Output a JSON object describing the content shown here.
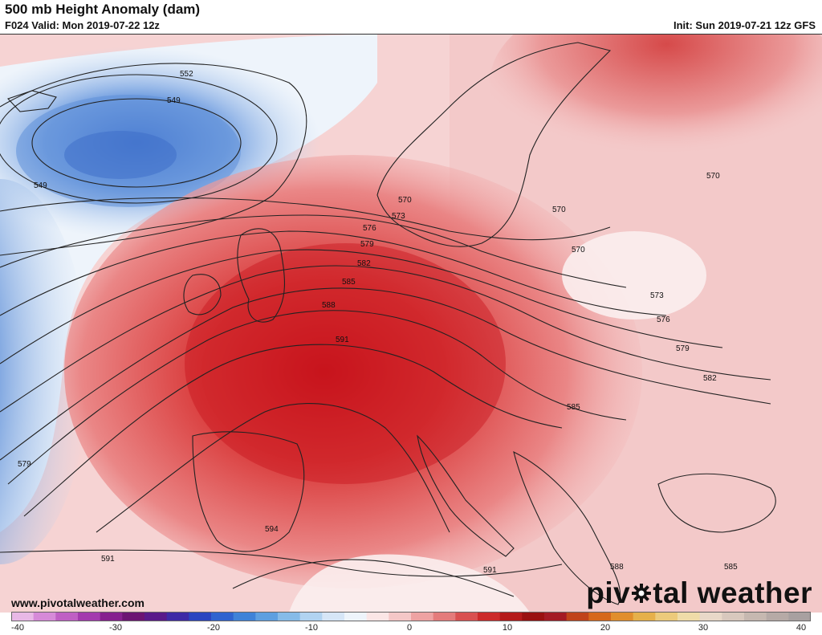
{
  "header": {
    "title": "500 mb Height Anomaly (dam)",
    "subtitle": "F024 Valid: Mon 2019-07-22 12z",
    "init": "Init: Sun 2019-07-21 12z GFS"
  },
  "footer": {
    "website": "www.pivotalweather.com",
    "logo_part1": "piv",
    "logo_part2": "tal weather"
  },
  "map": {
    "region": "Europe and North Atlantic",
    "colors": {
      "deep_negative": "#2b5cc4",
      "negative": "#6f9be0",
      "light_negative": "#bcd4f0",
      "neutral": "#ffffff",
      "light_positive": "#f4c6c6",
      "positive": "#e06262",
      "strong_positive": "#c8141c"
    },
    "contour_labels": [
      {
        "id": "c552",
        "text": "552"
      },
      {
        "id": "c549a",
        "text": "549"
      },
      {
        "id": "c549b",
        "text": "549"
      },
      {
        "id": "c570a",
        "text": "570"
      },
      {
        "id": "c573a",
        "text": "573"
      },
      {
        "id": "c576a",
        "text": "576"
      },
      {
        "id": "c579a",
        "text": "579"
      },
      {
        "id": "c582a",
        "text": "582"
      },
      {
        "id": "c585a",
        "text": "585"
      },
      {
        "id": "c588a",
        "text": "588"
      },
      {
        "id": "c591a",
        "text": "591"
      },
      {
        "id": "c570b",
        "text": "570"
      },
      {
        "id": "c570c",
        "text": "570"
      },
      {
        "id": "c570d",
        "text": "570"
      },
      {
        "id": "c573b",
        "text": "573"
      },
      {
        "id": "c576b",
        "text": "576"
      },
      {
        "id": "c579b",
        "text": "579"
      },
      {
        "id": "c582b",
        "text": "582"
      },
      {
        "id": "c585b",
        "text": "585"
      },
      {
        "id": "c579c",
        "text": "579"
      },
      {
        "id": "c594",
        "text": "594"
      },
      {
        "id": "c591b",
        "text": "591"
      },
      {
        "id": "c591c",
        "text": "591"
      },
      {
        "id": "c588b",
        "text": "588"
      },
      {
        "id": "c585c",
        "text": "585"
      }
    ]
  },
  "colorbar": {
    "min": -40,
    "max": 40,
    "ticks": [
      "-40",
      "-30",
      "-20",
      "-10",
      "0",
      "10",
      "20",
      "30",
      "40"
    ],
    "colors": [
      "#e8b8e6",
      "#d68ad8",
      "#bf5fc4",
      "#a33aae",
      "#86208f",
      "#6c1473",
      "#5a1a8a",
      "#3f2aa6",
      "#2b45c0",
      "#2f63cf",
      "#3f82d8",
      "#5e9fe0",
      "#86bbe8",
      "#b1d3f1",
      "#d6e6f7",
      "#eef4fb",
      "#fbe6e6",
      "#f5c7c7",
      "#eea2a2",
      "#e47b7b",
      "#d95050",
      "#cc2a2a",
      "#b51a1a",
      "#9a1010",
      "#a41a24",
      "#c0431a",
      "#d6681b",
      "#e18e2c",
      "#e6b04a",
      "#ecca7b",
      "#efdca8",
      "#e8d8c8",
      "#d8c8bd",
      "#c6b8b0",
      "#b6aaa6",
      "#a8a0a0"
    ]
  }
}
